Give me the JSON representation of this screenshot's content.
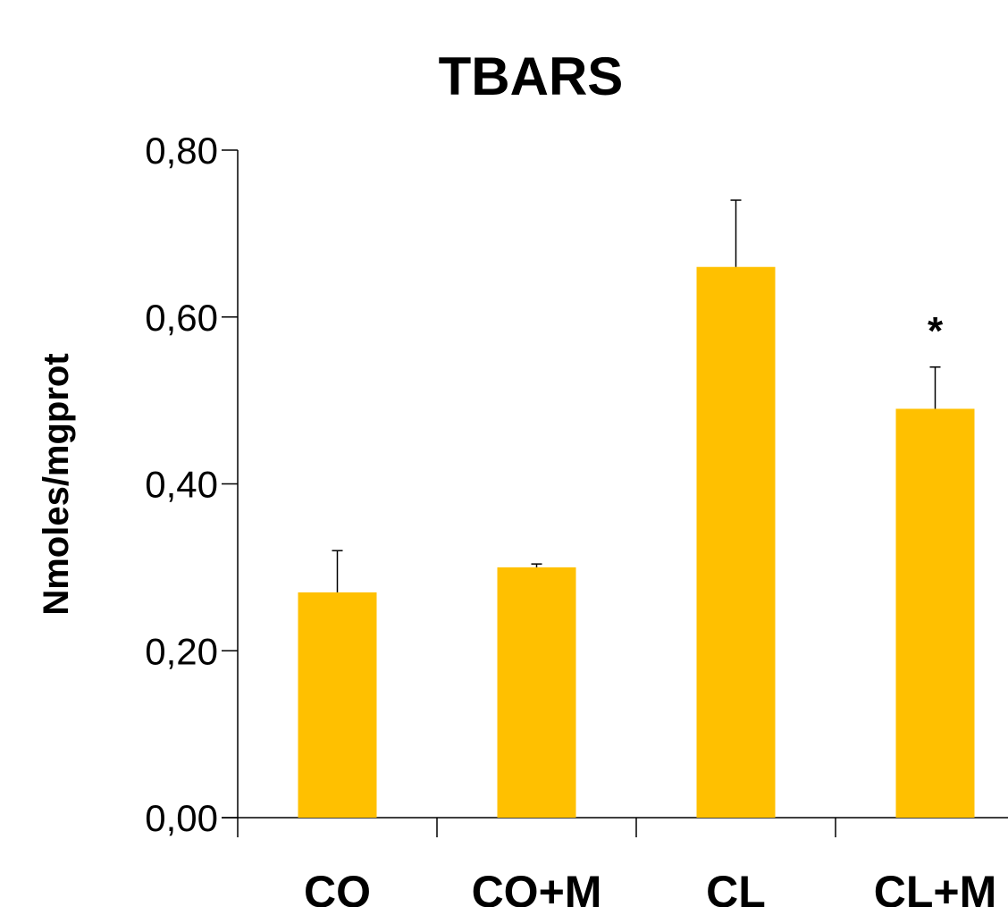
{
  "chart_data": {
    "type": "bar",
    "title": "TBARS",
    "ylabel": "Nmoles/mgprot",
    "xlabel": "",
    "categories": [
      "CO",
      "CO+M",
      "CL",
      "CL+M"
    ],
    "values": [
      0.27,
      0.3,
      0.66,
      0.49
    ],
    "error_upper": [
      0.05,
      0.004,
      0.08,
      0.05
    ],
    "ylim": [
      0,
      0.8
    ],
    "yticks": [
      0.0,
      0.2,
      0.4,
      0.6,
      0.8
    ],
    "ytick_labels": [
      "0,00",
      "0,20",
      "0,40",
      "0,60",
      "0,80"
    ],
    "annotations": [
      {
        "category": "CL+M",
        "text": "*"
      }
    ],
    "bar_color": "#FFC000",
    "grid": false,
    "legend": "none"
  }
}
